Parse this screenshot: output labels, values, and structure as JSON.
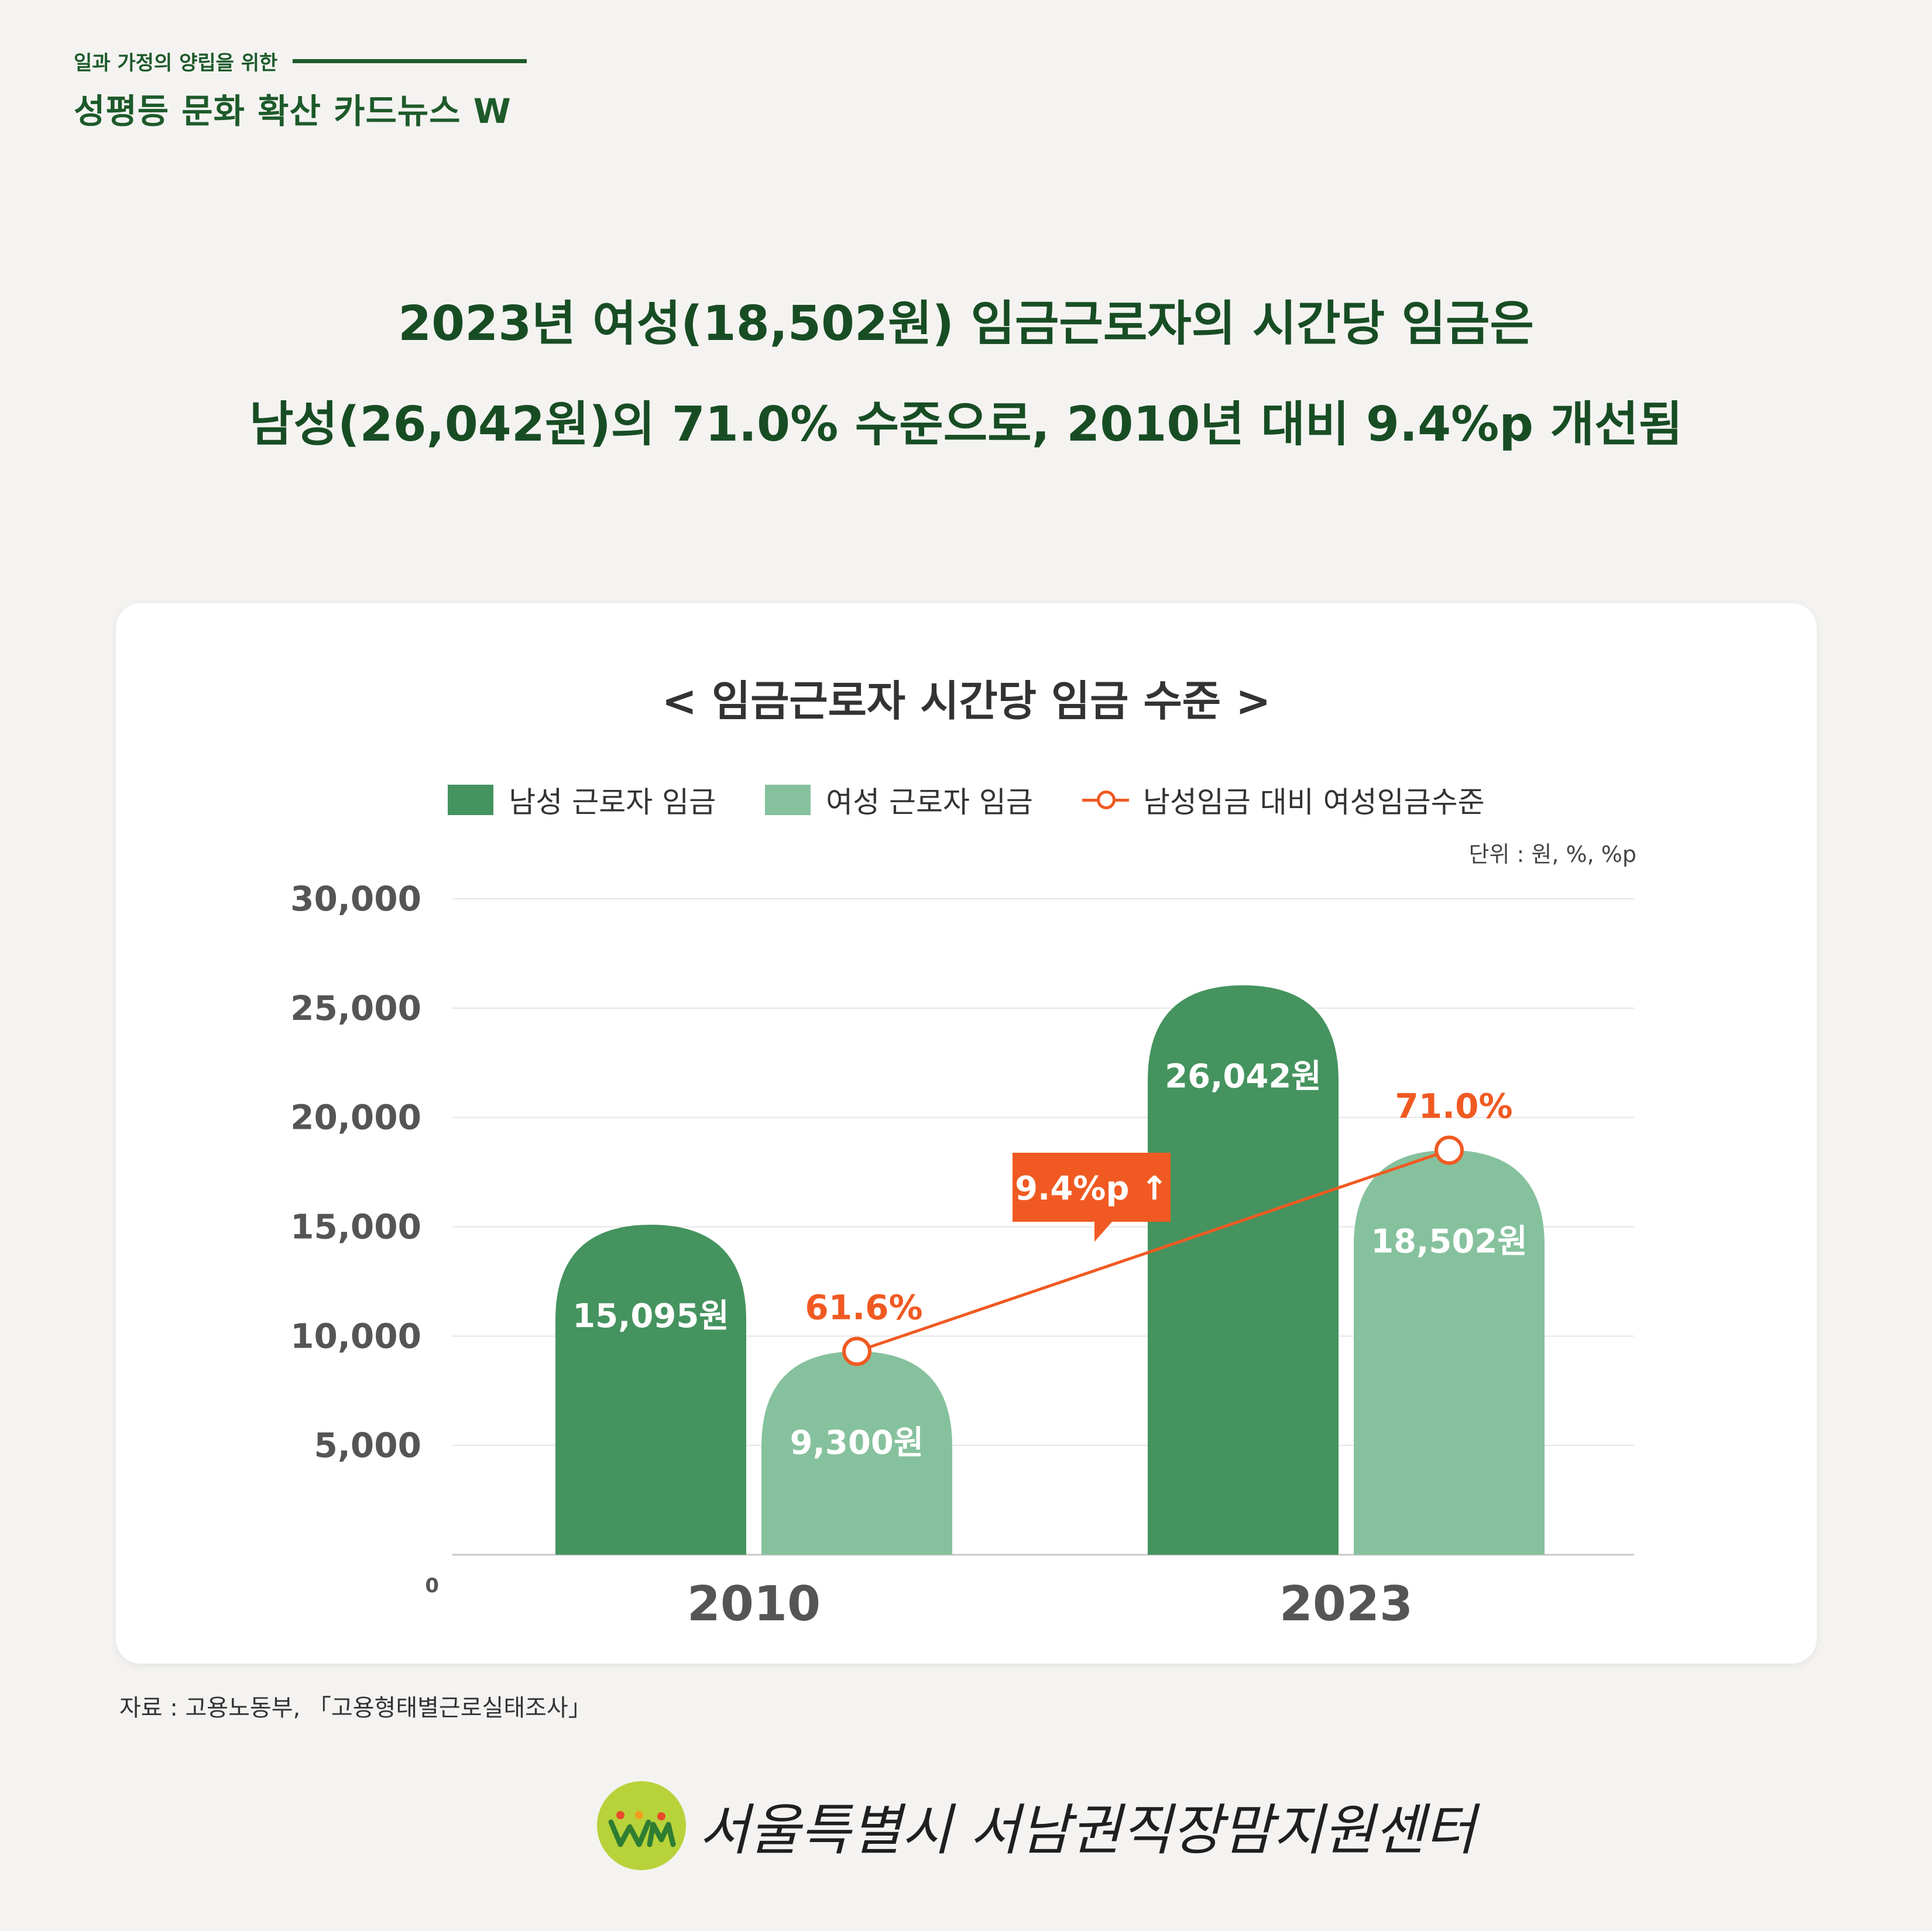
{
  "brand": {
    "line1": "일과 가정의 양립을 위한",
    "line2": "성평등 문화 확산 카드뉴스 W"
  },
  "headline": {
    "line1": "2023년 여성(18,502원) 임금근로자의 시간당 임금은",
    "line2": "남성(26,042원)의 71.0% 수준으로, 2010년 대비 9.4%p 개선됨"
  },
  "colors": {
    "male": "#45935f",
    "female": "#86c19d",
    "ratio": "#f05a22",
    "title": "#184d24"
  },
  "legend": {
    "male": "남성 근로자 임금",
    "female": "여성 근로자 임금",
    "ratio": "남성임금 대비 여성임금수준"
  },
  "unit": "단위 : 원, %, %p",
  "source": "자료 : 고용노동부, 「고용형태별근로실태조사」",
  "footer": {
    "org": "서울특별시 서남권직장맘지원센터",
    "logo_icon": "wm-logo-icon"
  },
  "chart_data": {
    "type": "bar",
    "title": "< 임금근로자 시간당 임금 수준 >",
    "categories": [
      "2010",
      "2023"
    ],
    "ylim": [
      0,
      30000
    ],
    "yticks": [
      0,
      5000,
      10000,
      15000,
      20000,
      25000,
      30000
    ],
    "ytick_labels": [
      "0",
      "5,000",
      "10,000",
      "15,000",
      "20,000",
      "25,000",
      "30,000"
    ],
    "grid": true,
    "legend_position": "top-center",
    "series": [
      {
        "name": "남성 근로자 임금",
        "values": [
          15095,
          26042
        ],
        "labels": [
          "15,095원",
          "26,042원"
        ]
      },
      {
        "name": "여성 근로자 임금",
        "values": [
          9300,
          18502
        ],
        "labels": [
          "9,300원",
          "18,502원"
        ]
      }
    ],
    "line_series": {
      "name": "남성임금 대비 여성임금수준",
      "values": [
        61.6,
        71.0
      ],
      "labels": [
        "61.6%",
        "71.0%"
      ]
    },
    "annotation": "9.4%p ↑"
  }
}
